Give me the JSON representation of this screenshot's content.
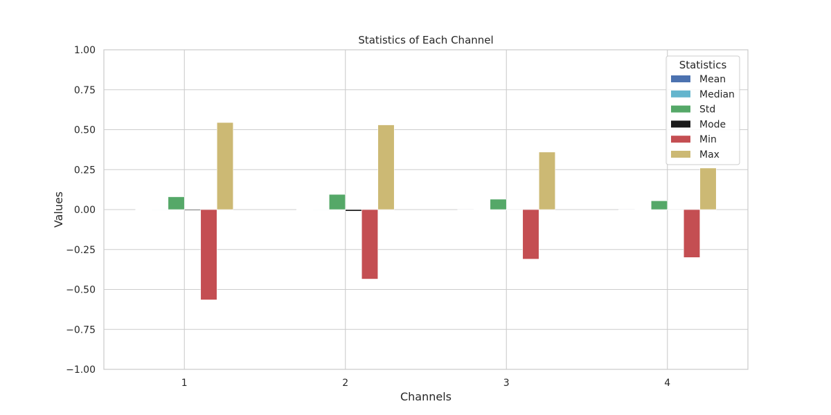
{
  "chart_data": {
    "type": "bar",
    "title": "Statistics of Each Channel",
    "xlabel": "Channels",
    "ylabel": "Values",
    "categories": [
      "1",
      "2",
      "3",
      "4"
    ],
    "ylim": [
      -1.0,
      1.0
    ],
    "yticks": [
      -1.0,
      -0.75,
      -0.5,
      -0.25,
      0.0,
      0.25,
      0.5,
      0.75,
      1.0
    ],
    "ytick_labels": [
      "−1.00",
      "−0.75",
      "−0.50",
      "−0.25",
      "0.00",
      "0.25",
      "0.50",
      "0.75",
      "1.00"
    ],
    "grid": true,
    "legend": {
      "title": "Statistics",
      "placement": "top-right"
    },
    "series": [
      {
        "name": "Mean",
        "color": "#4c72b0",
        "values": [
          0.001,
          0.001,
          0.0,
          0.0
        ]
      },
      {
        "name": "Median",
        "color": "#64b5cd",
        "values": [
          0.002,
          0.002,
          0.001,
          0.001
        ]
      },
      {
        "name": "Std",
        "color": "#55a868",
        "values": [
          0.08,
          0.095,
          0.065,
          0.055
        ]
      },
      {
        "name": "Mode",
        "color": "#1a1a1a",
        "values": [
          -0.005,
          -0.01,
          0.0,
          0.0
        ]
      },
      {
        "name": "Min",
        "color": "#c44e52",
        "values": [
          -0.565,
          -0.435,
          -0.31,
          -0.3
        ]
      },
      {
        "name": "Max",
        "color": "#ccb974",
        "values": [
          0.545,
          0.53,
          0.36,
          0.26
        ]
      }
    ]
  }
}
